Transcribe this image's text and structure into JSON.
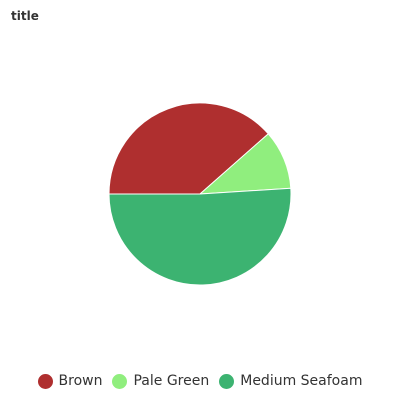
{
  "chart_data": {
    "type": "pie",
    "title": "title",
    "start_angle_deg": 180,
    "direction": "clockwise",
    "legend_position": "bottom",
    "categories": [
      "Brown",
      "Pale Green",
      "Medium Seafoam"
    ],
    "values": [
      38.5,
      10.5,
      51.0
    ],
    "colors": [
      "#AF2F2F",
      "#90EE7E",
      "#3CB371"
    ]
  }
}
